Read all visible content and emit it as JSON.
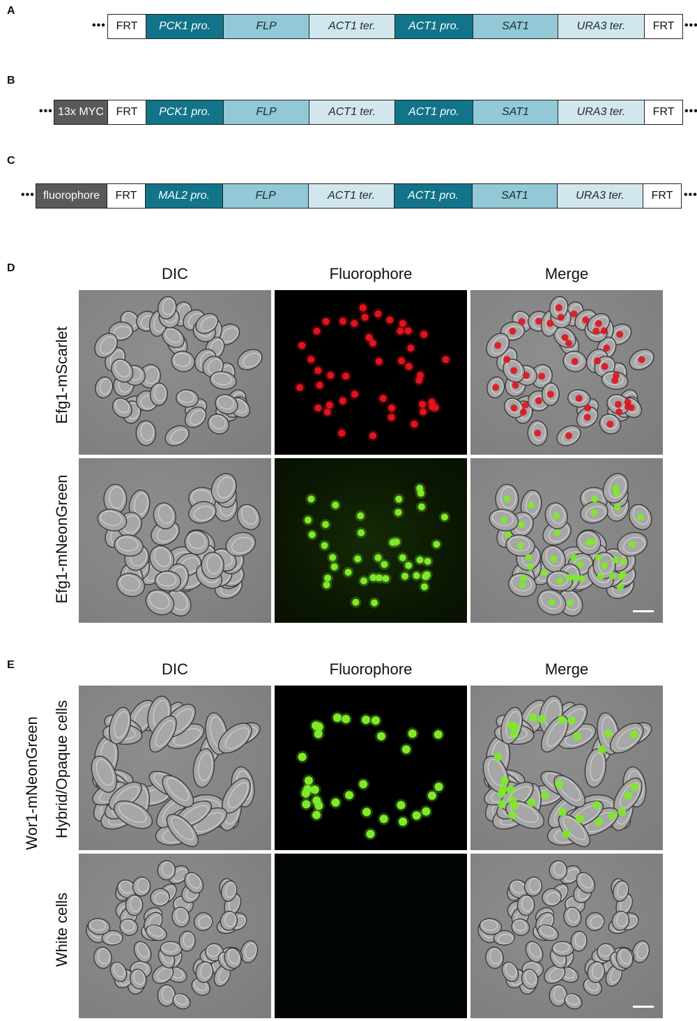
{
  "panels": {
    "a": "A",
    "b": "B",
    "c": "C",
    "d": "D",
    "e": "E"
  },
  "constructs": {
    "dots": "•••",
    "a": [
      "FRT",
      "PCK1 pro.",
      "FLP",
      "ACT1 ter.",
      "ACT1 pro.",
      "SAT1",
      "URA3 ter.",
      "FRT"
    ],
    "b": [
      "13x MYC",
      "FRT",
      "PCK1 pro.",
      "FLP",
      "ACT1 ter.",
      "ACT1 pro.",
      "SAT1",
      "URA3 ter.",
      "FRT"
    ],
    "c": [
      "fluorophore",
      "FRT",
      "MAL2 pro.",
      "FLP",
      "ACT1 ter.",
      "ACT1 pro.",
      "SAT1",
      "URA3 ter.",
      "FRT"
    ]
  },
  "colors": {
    "dark_teal": "#127489",
    "mid_blue": "#93c8d7",
    "light_blue": "#d2e6ee",
    "gray_tag": "#595959",
    "red_signal": "#e0141e",
    "green_signal": "#7fea2a"
  },
  "panel_d": {
    "columns": [
      "DIC",
      "Fluorophore",
      "Merge"
    ],
    "rows": [
      "Efg1-mScarlet",
      "Efg1-mNeonGreen"
    ]
  },
  "panel_e": {
    "columns": [
      "DIC",
      "Fluorophore",
      "Merge"
    ],
    "group_label": "Wor1-mNeonGreen",
    "rows": [
      "Hybrid/Opaque cells",
      "White cells"
    ]
  }
}
